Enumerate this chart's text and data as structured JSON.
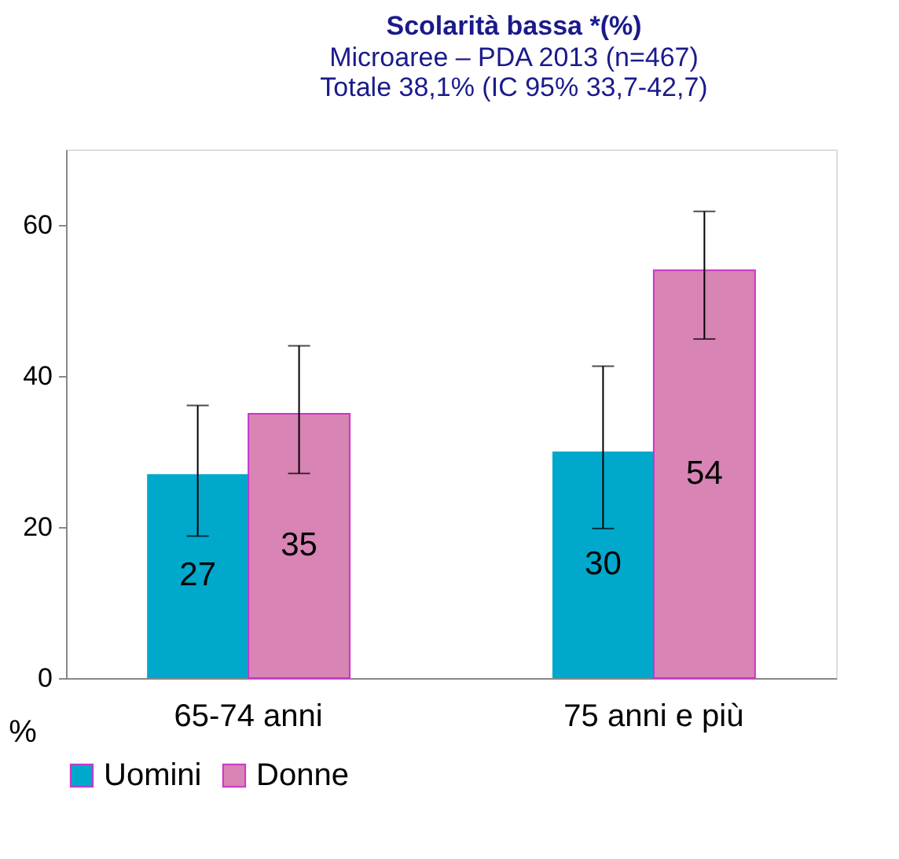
{
  "chart_data": {
    "type": "bar",
    "title": "Scolarità bassa *(%)",
    "subtitle": [
      "Microaree – PDA 2013 (n=467)",
      "Totale 38,1% (IC 95% 33,7-42,7)"
    ],
    "ylabel": "%",
    "categories": [
      "65-74 anni",
      "75 anni e più"
    ],
    "series": [
      {
        "name": "Uomini",
        "color": "#00a8cc",
        "values": [
          27,
          30
        ],
        "errors": [
          [
            18.8,
            36.1
          ],
          [
            19.8,
            41.3
          ]
        ]
      },
      {
        "name": "Donne",
        "color": "#d884b4",
        "values": [
          35,
          54
        ],
        "errors": [
          [
            27.1,
            44.0
          ],
          [
            44.9,
            61.8
          ]
        ]
      }
    ],
    "ylim": [
      0,
      70
    ],
    "yticks": [
      0,
      20,
      40,
      60
    ],
    "data_labels": true,
    "grid": false,
    "legend": "bottom"
  }
}
